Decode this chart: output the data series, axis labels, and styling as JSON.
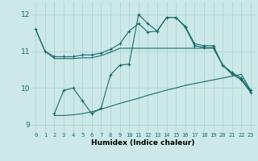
{
  "xlabel": "Humidex (Indice chaleur)",
  "xlim": [
    -0.5,
    23.5
  ],
  "ylim": [
    8.8,
    12.35
  ],
  "yticks": [
    9,
    10,
    11,
    12
  ],
  "xticks": [
    0,
    1,
    2,
    3,
    4,
    5,
    6,
    7,
    8,
    9,
    10,
    11,
    12,
    13,
    14,
    15,
    16,
    17,
    18,
    19,
    20,
    21,
    22,
    23
  ],
  "bg_color": "#cce8e8",
  "grid_color": "#b0d4d4",
  "line_color": "#1a6b6b",
  "line1_x": [
    0,
    1,
    2,
    3,
    4,
    5,
    6,
    7,
    8,
    9,
    10,
    11,
    12,
    13,
    14,
    15,
    16,
    17,
    18,
    19,
    20,
    21,
    22,
    23
  ],
  "line1_y": [
    11.6,
    11.0,
    10.85,
    10.85,
    10.85,
    10.9,
    10.9,
    10.95,
    11.05,
    11.2,
    11.55,
    11.75,
    11.52,
    11.55,
    11.92,
    11.92,
    11.68,
    11.2,
    11.15,
    11.15,
    10.62,
    10.42,
    10.27,
    9.93
  ],
  "line2_x": [
    0,
    1,
    2,
    3,
    4,
    5,
    6,
    7,
    8,
    9,
    10,
    11,
    12,
    13,
    14,
    15,
    16,
    17,
    18,
    19,
    20,
    21,
    22,
    23
  ],
  "line2_y": [
    11.6,
    11.0,
    10.8,
    10.8,
    10.8,
    10.82,
    10.82,
    10.88,
    10.97,
    11.08,
    11.08,
    11.08,
    11.08,
    11.08,
    11.08,
    11.08,
    11.08,
    11.08,
    11.08,
    11.08,
    10.62,
    10.38,
    10.22,
    9.88
  ],
  "line3_x": [
    2,
    3,
    4,
    5,
    6,
    7,
    8,
    9,
    10,
    11,
    12,
    13,
    14,
    15,
    16,
    17,
    18,
    19,
    20,
    21,
    22,
    23
  ],
  "line3_y": [
    9.3,
    9.93,
    10.0,
    9.65,
    9.3,
    9.45,
    10.35,
    10.62,
    10.65,
    12.0,
    11.75,
    11.55,
    11.92,
    11.92,
    11.65,
    11.15,
    11.1,
    11.1,
    10.62,
    10.38,
    10.22,
    9.88
  ],
  "line4_x": [
    2,
    3,
    4,
    5,
    6,
    7,
    8,
    9,
    10,
    11,
    12,
    13,
    14,
    15,
    16,
    17,
    18,
    19,
    20,
    21,
    22,
    23
  ],
  "line4_y": [
    9.25,
    9.25,
    9.27,
    9.3,
    9.35,
    9.42,
    9.5,
    9.58,
    9.65,
    9.72,
    9.8,
    9.87,
    9.94,
    10.0,
    10.07,
    10.12,
    10.17,
    10.22,
    10.27,
    10.32,
    10.37,
    9.93
  ]
}
